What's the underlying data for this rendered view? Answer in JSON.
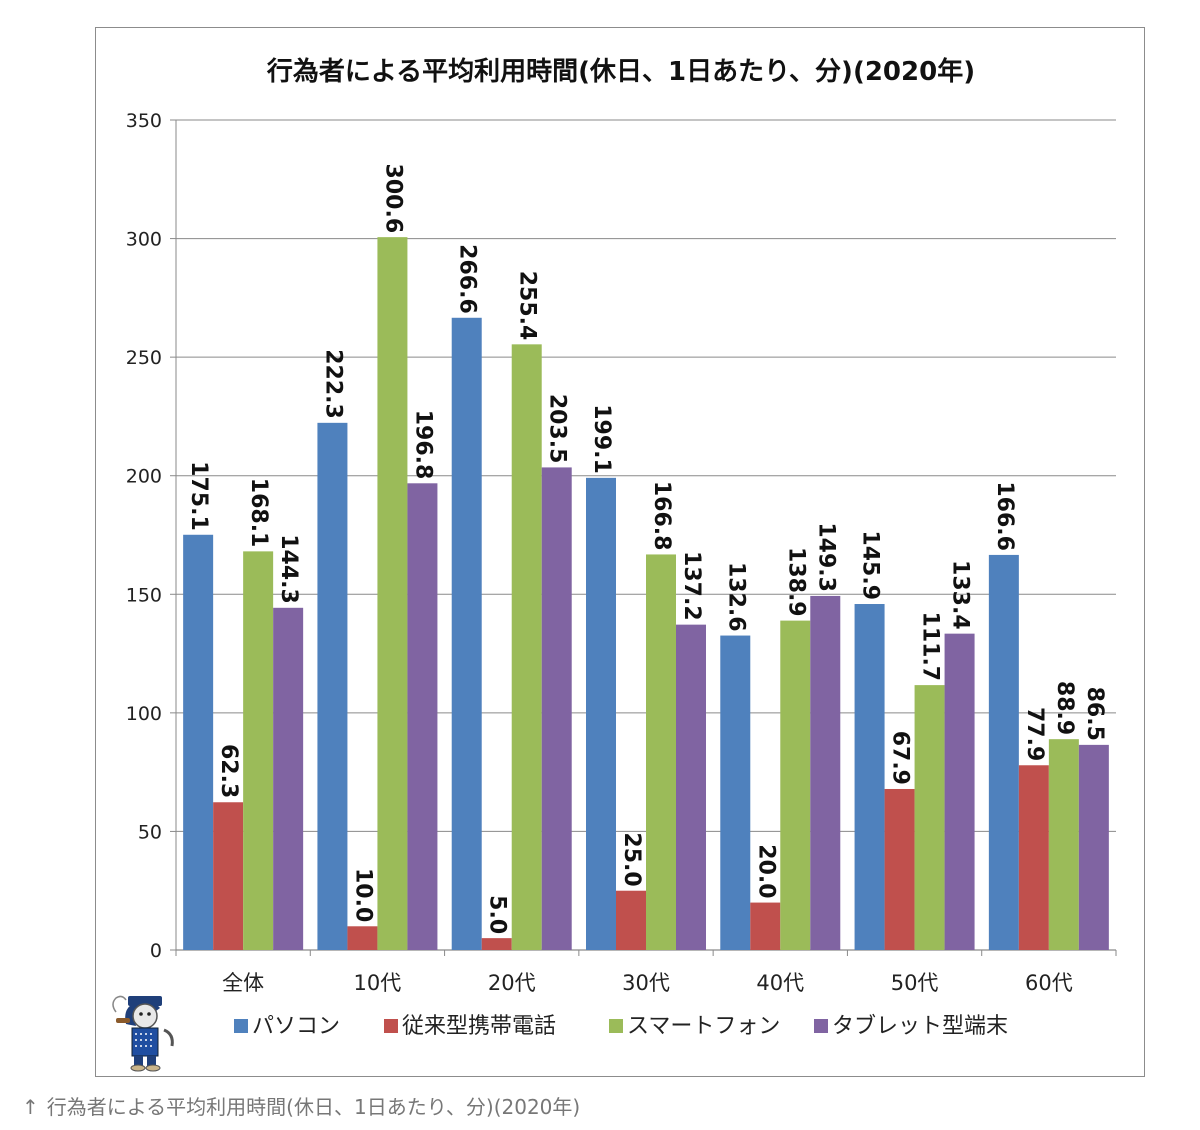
{
  "caption": {
    "arrow": "↑",
    "text": "行為者による平均利用時間(休日、1日あたり、分)(2020年)"
  },
  "chart_data": {
    "type": "bar",
    "title": "行為者による平均利用時間(休日、1日あたり、分)(2020年)",
    "xlabel": "",
    "ylabel": "",
    "ylim": [
      0,
      350
    ],
    "yticks": [
      0,
      50,
      100,
      150,
      200,
      250,
      300,
      350
    ],
    "grid": true,
    "legend_position": "bottom",
    "categories": [
      "全体",
      "10代",
      "20代",
      "30代",
      "40代",
      "50代",
      "60代"
    ],
    "series": [
      {
        "name": "パソコン",
        "color": "#4F81BD",
        "values": [
          175.1,
          222.3,
          266.6,
          199.1,
          132.6,
          145.9,
          166.6
        ]
      },
      {
        "name": "従来型携帯電話",
        "color": "#C0504D",
        "values": [
          62.3,
          10.0,
          5.0,
          25.0,
          20.0,
          67.9,
          77.9
        ]
      },
      {
        "name": "スマートフォン",
        "color": "#9BBB59",
        "values": [
          168.1,
          300.6,
          255.4,
          166.8,
          138.9,
          111.7,
          88.9
        ]
      },
      {
        "name": "タブレット型端末",
        "color": "#8064A2",
        "values": [
          144.3,
          196.8,
          203.5,
          137.2,
          149.3,
          133.4,
          86.5
        ]
      }
    ],
    "data_labels": [
      [
        "175.1",
        "222.3",
        "266.6",
        "199.1",
        "132.6",
        "145.9",
        "166.6"
      ],
      [
        "62.3",
        "10.0",
        "5.0",
        "25.0",
        "20.0",
        "67.9",
        "77.9"
      ],
      [
        "168.1",
        "300.6",
        "255.4",
        "166.8",
        "138.9",
        "111.7",
        "88.9"
      ],
      [
        "144.3",
        "196.8",
        "203.5",
        "137.2",
        "149.3",
        "133.4",
        "86.5"
      ]
    ],
    "mascot_icon": "mascot-character-icon"
  }
}
